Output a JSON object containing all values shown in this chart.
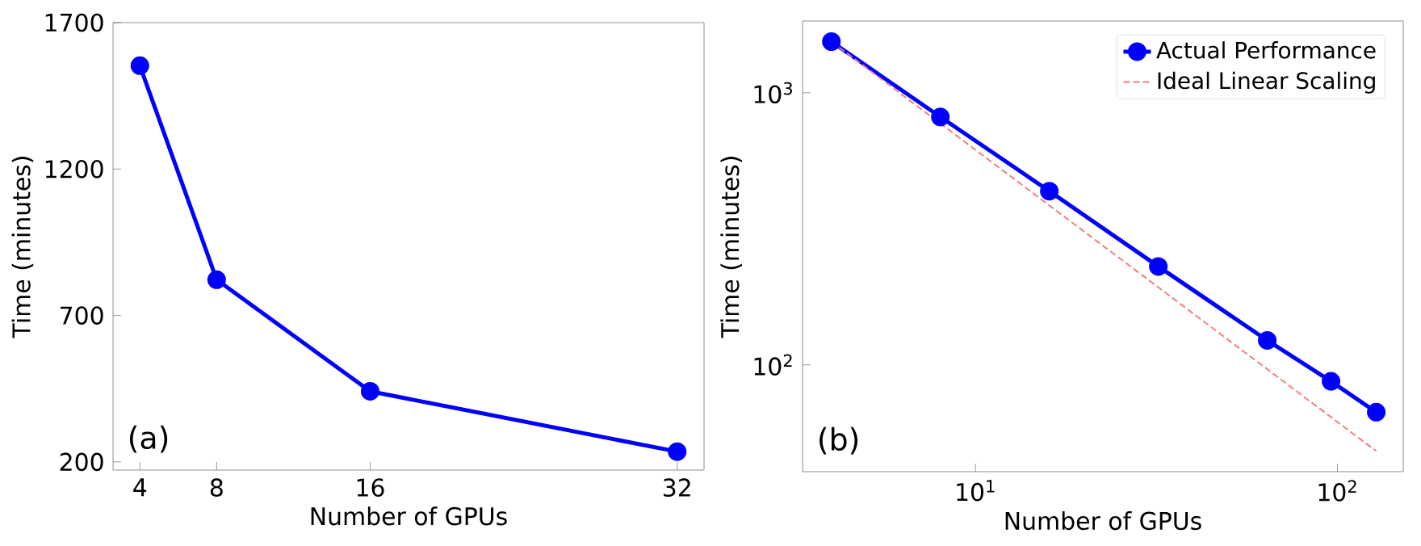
{
  "chart_data": [
    {
      "type": "line",
      "xlabel": "Number of GPUs",
      "ylabel": "Time (minutes)",
      "x": [
        4,
        8,
        16,
        32
      ],
      "xlim": [
        2.6,
        33.4
      ],
      "ylim": [
        172,
        1700
      ],
      "xticks": [
        4,
        8,
        16,
        32
      ],
      "yticks": [
        200,
        700,
        1200,
        1700
      ],
      "marker": "circle",
      "series": [
        {
          "color": "#0000ff",
          "values": [
            1553,
            822,
            441,
            235
          ]
        }
      ],
      "annotations": [
        "(a)"
      ]
    },
    {
      "type": "line",
      "xlabel": "Number of GPUs",
      "ylabel": "Time (minutes)",
      "log": "xy",
      "xlim": [
        3.33,
        152
      ],
      "ylim": [
        40.5,
        1836
      ],
      "xticks": [
        {
          "value": 10,
          "label": "10$^{1}$"
        },
        {
          "value": 100,
          "label": "10$^{2}$"
        }
      ],
      "yticks": [
        {
          "value": 100,
          "label": "10$^{2}$"
        },
        {
          "value": 1000,
          "label": "10$^{3}$"
        }
      ],
      "legend": "top right",
      "series": [
        {
          "name": "Actual Performance",
          "color": "#0000ff",
          "marker": "circle",
          "x": [
            4,
            8,
            16,
            32,
            64,
            96,
            128
          ],
          "values": [
            1542,
            815,
            435,
            230,
            123,
            87,
            67
          ]
        },
        {
          "name": "Ideal Linear Scaling",
          "color": "#f08080",
          "marker": "none",
          "line_style": "dashed",
          "x": [
            4,
            128
          ],
          "values": [
            1542,
            48.2
          ]
        }
      ],
      "annotations": [
        "(b)"
      ]
    }
  ]
}
